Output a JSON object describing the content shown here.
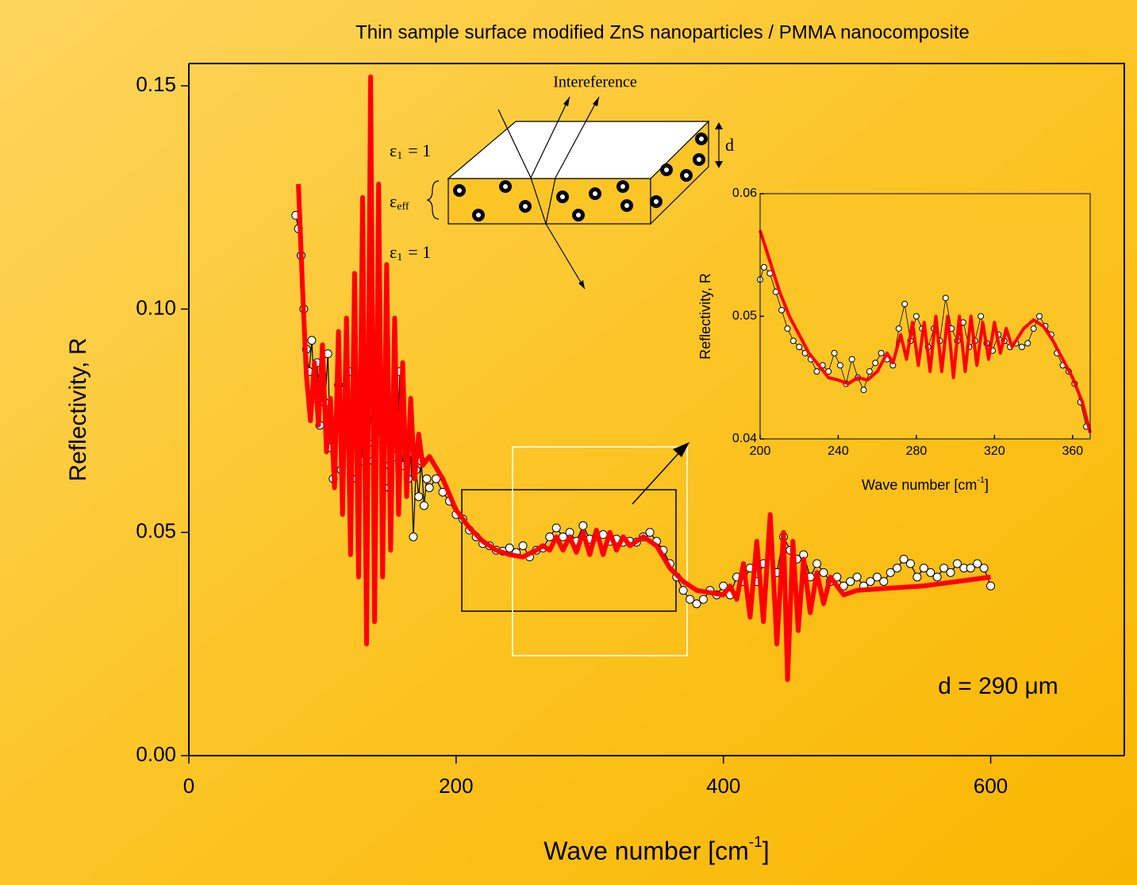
{
  "chart_data": [
    {
      "type": "line",
      "title": "Thin sample  surface modified ZnS nanoparticles / PMMA nanocomposite",
      "x_label": {
        "text": "Wave number [cm",
        "sup": "-1",
        "close": "]"
      },
      "y_label": "Reflectivity, R",
      "xlim": [
        0,
        700
      ],
      "xticks": [
        0,
        200,
        400,
        600
      ],
      "ylim": [
        0,
        0.155
      ],
      "yticks": [
        {
          "value": 0,
          "label": "0.00"
        },
        0.05,
        {
          "value": 0.1,
          "label": "0.10"
        },
        0.15
      ],
      "annotations": [
        {
          "text": "d = 290 μm"
        }
      ],
      "series": [
        {
          "style": "markers",
          "color": "#000000",
          "x": [
            80,
            82,
            84,
            86,
            88,
            90,
            92,
            94,
            96,
            98,
            100,
            102,
            104,
            106,
            108,
            110,
            112,
            114,
            116,
            118,
            120,
            122,
            124,
            126,
            128,
            130,
            132,
            134,
            136,
            138,
            140,
            142,
            144,
            146,
            148,
            150,
            152,
            154,
            156,
            158,
            160,
            162,
            164,
            166,
            168,
            170,
            172,
            174,
            176,
            178,
            180,
            185,
            190,
            195,
            200,
            205,
            210,
            215,
            220,
            225,
            230,
            235,
            240,
            245,
            250,
            255,
            260,
            265,
            270,
            275,
            280,
            285,
            290,
            295,
            300,
            305,
            310,
            315,
            320,
            325,
            330,
            335,
            340,
            345,
            350,
            355,
            360,
            365,
            370,
            375,
            380,
            385,
            390,
            395,
            400,
            405,
            410,
            415,
            420,
            425,
            430,
            435,
            440,
            445,
            450,
            455,
            460,
            465,
            470,
            475,
            480,
            485,
            490,
            495,
            500,
            505,
            510,
            515,
            520,
            525,
            530,
            535,
            540,
            545,
            550,
            555,
            560,
            565,
            570,
            575,
            580,
            585,
            590,
            595,
            600
          ],
          "values": [
            0.121,
            0.118,
            0.112,
            0.1,
            0.091,
            0.086,
            0.093,
            0.08,
            0.088,
            0.074,
            0.085,
            0.079,
            0.09,
            0.069,
            0.062,
            0.075,
            0.083,
            0.064,
            0.078,
            0.069,
            0.086,
            0.062,
            0.079,
            0.072,
            0.084,
            0.066,
            0.08,
            0.07,
            0.077,
            0.066,
            0.082,
            0.071,
            0.078,
            0.065,
            0.075,
            0.06,
            0.073,
            0.067,
            0.07,
            0.086,
            0.065,
            0.07,
            0.062,
            0.068,
            0.049,
            0.064,
            0.058,
            0.066,
            0.056,
            0.062,
            0.06,
            0.062,
            0.059,
            0.057,
            0.054,
            0.053,
            0.0505,
            0.049,
            0.0475,
            0.047,
            0.046,
            0.0458,
            0.0465,
            0.0455,
            0.047,
            0.0445,
            0.046,
            0.0465,
            0.049,
            0.051,
            0.049,
            0.05,
            0.048,
            0.0515,
            0.0485,
            0.049,
            0.0495,
            0.048,
            0.0485,
            0.0478,
            0.048,
            0.0478,
            0.049,
            0.05,
            0.048,
            0.046,
            0.043,
            0.04,
            0.037,
            0.035,
            0.034,
            0.035,
            0.037,
            0.036,
            0.038,
            0.036,
            0.04,
            0.039,
            0.042,
            0.039,
            0.043,
            0.045,
            0.041,
            0.049,
            0.046,
            0.044,
            0.045,
            0.04,
            0.043,
            0.041,
            0.039,
            0.04,
            0.038,
            0.039,
            0.04,
            0.038,
            0.039,
            0.04,
            0.039,
            0.041,
            0.042,
            0.044,
            0.043,
            0.04,
            0.042,
            0.041,
            0.04,
            0.042,
            0.041,
            0.043,
            0.042,
            0.042,
            0.043,
            0.042,
            0.038
          ]
        },
        {
          "style": "line",
          "color": "#ff0000",
          "x": [
            82,
            85,
            88,
            91,
            94,
            97,
            100,
            103,
            106,
            109,
            112,
            115,
            118,
            121,
            124,
            127,
            130,
            133,
            136,
            139,
            142,
            145,
            148,
            151,
            154,
            157,
            160,
            163,
            166,
            169,
            172,
            175,
            180,
            190,
            200,
            210,
            220,
            230,
            240,
            250,
            260,
            265,
            270,
            275,
            280,
            285,
            290,
            295,
            300,
            305,
            310,
            315,
            320,
            325,
            330,
            340,
            350,
            360,
            370,
            380,
            390,
            400,
            405,
            410,
            415,
            420,
            425,
            430,
            435,
            440,
            445,
            448,
            452,
            456,
            460,
            465,
            470,
            475,
            480,
            490,
            500,
            550,
            600
          ],
          "values": [
            0.128,
            0.105,
            0.085,
            0.075,
            0.088,
            0.074,
            0.092,
            0.068,
            0.08,
            0.06,
            0.095,
            0.054,
            0.098,
            0.045,
            0.108,
            0.04,
            0.125,
            0.025,
            0.152,
            0.03,
            0.128,
            0.04,
            0.11,
            0.046,
            0.098,
            0.054,
            0.088,
            0.058,
            0.08,
            0.062,
            0.072,
            0.065,
            0.067,
            0.062,
            0.055,
            0.051,
            0.048,
            0.046,
            0.045,
            0.0445,
            0.046,
            0.047,
            0.046,
            0.049,
            0.046,
            0.049,
            0.0455,
            0.05,
            0.045,
            0.0505,
            0.045,
            0.05,
            0.046,
            0.049,
            0.047,
            0.049,
            0.047,
            0.042,
            0.039,
            0.037,
            0.0365,
            0.036,
            0.038,
            0.035,
            0.043,
            0.031,
            0.048,
            0.03,
            0.054,
            0.025,
            0.05,
            0.017,
            0.048,
            0.028,
            0.044,
            0.032,
            0.041,
            0.034,
            0.04,
            0.036,
            0.037,
            0.038,
            0.04
          ]
        }
      ]
    },
    {
      "type": "line",
      "x_label": {
        "text": "Wave number [cm",
        "sup": "-1",
        "close": "]"
      },
      "y_label": "Reflectivity, R",
      "xlim": [
        200,
        369
      ],
      "xticks": [
        200,
        240,
        280,
        320,
        360
      ],
      "ylim": [
        0.04,
        0.06
      ],
      "yticks": [
        0.04,
        0.05,
        0.06
      ],
      "series": [
        {
          "style": "markers",
          "color": "#000000",
          "x": [
            200,
            202,
            205,
            208,
            211,
            214,
            217,
            220,
            223,
            226,
            229,
            232,
            235,
            238,
            241,
            244,
            247,
            250,
            253,
            256,
            259,
            262,
            265,
            268,
            271,
            274,
            277,
            280,
            283,
            286,
            289,
            292,
            295,
            298,
            301,
            304,
            307,
            310,
            313,
            316,
            319,
            322,
            325,
            328,
            331,
            334,
            337,
            340,
            343,
            346,
            349,
            352,
            355,
            358,
            361,
            364,
            367
          ],
          "values": [
            0.053,
            0.054,
            0.0535,
            0.052,
            0.0505,
            0.049,
            0.048,
            0.0475,
            0.047,
            0.0465,
            0.0455,
            0.046,
            0.0455,
            0.047,
            0.046,
            0.0445,
            0.0465,
            0.045,
            0.044,
            0.0455,
            0.0462,
            0.047,
            0.0465,
            0.046,
            0.049,
            0.051,
            0.048,
            0.05,
            0.049,
            0.0475,
            0.049,
            0.048,
            0.0515,
            0.049,
            0.048,
            0.0495,
            0.0475,
            0.048,
            0.05,
            0.0478,
            0.0472,
            0.0485,
            0.048,
            0.0475,
            0.0478,
            0.0475,
            0.0478,
            0.049,
            0.05,
            0.0492,
            0.0485,
            0.047,
            0.046,
            0.0455,
            0.0445,
            0.043,
            0.041
          ]
        },
        {
          "style": "line",
          "color": "#ff0000",
          "x": [
            200,
            205,
            210,
            215,
            220,
            225,
            230,
            235,
            240,
            245,
            250,
            255,
            260,
            265,
            268,
            272,
            275,
            278,
            281,
            284,
            287,
            290,
            293,
            296,
            299,
            302,
            305,
            308,
            311,
            314,
            317,
            320,
            323,
            326,
            329,
            335,
            340,
            345,
            350,
            355,
            360,
            365,
            369
          ],
          "values": [
            0.057,
            0.0545,
            0.052,
            0.05,
            0.0485,
            0.047,
            0.046,
            0.045,
            0.0448,
            0.0445,
            0.045,
            0.0448,
            0.0455,
            0.047,
            0.0462,
            0.0485,
            0.0465,
            0.0495,
            0.046,
            0.0495,
            0.0455,
            0.05,
            0.0455,
            0.05,
            0.045,
            0.05,
            0.0455,
            0.05,
            0.046,
            0.0495,
            0.0465,
            0.0495,
            0.047,
            0.049,
            0.0475,
            0.049,
            0.0497,
            0.0492,
            0.048,
            0.0465,
            0.045,
            0.043,
            0.0405
          ]
        }
      ]
    }
  ],
  "diagram": {
    "caption": "Intereference",
    "upper_medium": {
      "symbol": "ε",
      "sub": "1",
      "text": "= 1"
    },
    "film_medium": {
      "symbol": "ε",
      "sub": "eff"
    },
    "lower_medium": {
      "symbol": "ε",
      "sub": "1",
      "text": "= 1"
    },
    "thickness": "d"
  }
}
